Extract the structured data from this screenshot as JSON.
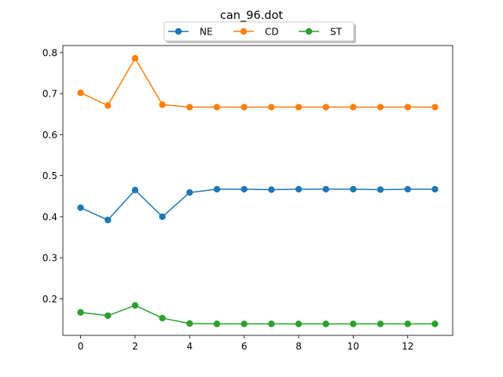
{
  "chart_data": {
    "type": "line",
    "title": "can_96.dot",
    "xlabel": "",
    "ylabel": "",
    "xlim": [
      -0.65,
      13.65
    ],
    "ylim": [
      0.111,
      0.817
    ],
    "xticks": [
      0,
      2,
      4,
      6,
      8,
      10,
      12
    ],
    "yticks": [
      0.2,
      0.3,
      0.4,
      0.5,
      0.6,
      0.7,
      0.8
    ],
    "grid": false,
    "legend_placement": "top-center",
    "x": [
      0,
      1,
      2,
      3,
      4,
      5,
      6,
      7,
      8,
      9,
      10,
      11,
      12,
      13
    ],
    "series": [
      {
        "name": "NE",
        "color": "#1f77b4",
        "values": [
          0.422,
          0.392,
          0.465,
          0.4,
          0.459,
          0.467,
          0.467,
          0.466,
          0.467,
          0.467,
          0.467,
          0.466,
          0.467,
          0.467
        ]
      },
      {
        "name": "CD",
        "color": "#ff7f0e",
        "values": [
          0.702,
          0.671,
          0.786,
          0.673,
          0.667,
          0.667,
          0.667,
          0.667,
          0.667,
          0.667,
          0.667,
          0.667,
          0.667,
          0.667
        ]
      },
      {
        "name": "ST",
        "color": "#2ca02c",
        "values": [
          0.167,
          0.159,
          0.184,
          0.153,
          0.14,
          0.139,
          0.139,
          0.139,
          0.139,
          0.139,
          0.139,
          0.139,
          0.139,
          0.139
        ]
      }
    ]
  }
}
